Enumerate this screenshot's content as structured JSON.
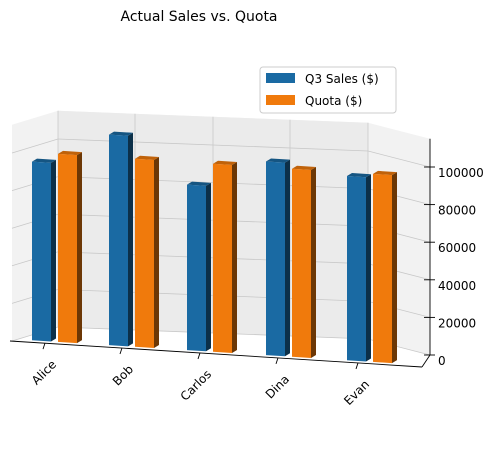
{
  "chart_data": {
    "type": "bar",
    "title": "Actual Sales vs. Quota",
    "categories": [
      "Alice",
      "Bob",
      "Carlos",
      "Dina",
      "Evan"
    ],
    "series": [
      {
        "name": "Q3 Sales ($)",
        "color": "#1a6aa3",
        "values": [
          95000,
          112000,
          88000,
          103000,
          98000
        ]
      },
      {
        "name": "Quota ($)",
        "color": "#f07a0c",
        "values": [
          100000,
          100000,
          100000,
          100000,
          100000
        ]
      }
    ],
    "yticks": [
      0,
      20000,
      40000,
      60000,
      80000,
      100000
    ],
    "ylim": [
      0,
      115000
    ],
    "grid": true,
    "legend": "upper-right"
  }
}
